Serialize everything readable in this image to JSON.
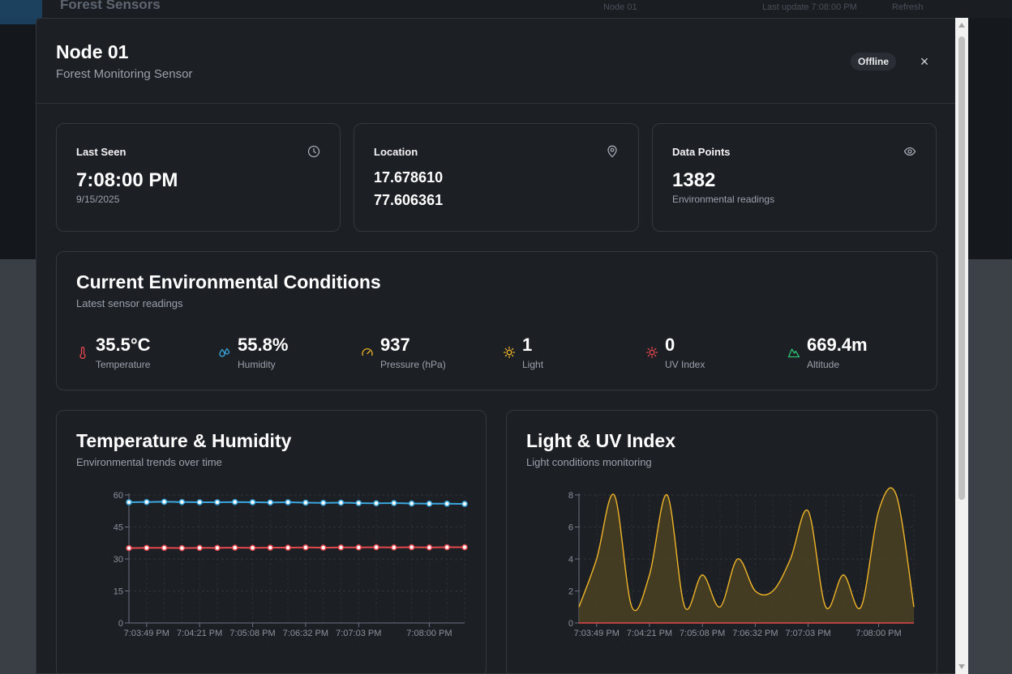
{
  "background": {
    "title": "Forest Sensors",
    "nav": [
      "Node 01",
      "Last update 7:08:00 PM",
      "Refresh"
    ]
  },
  "modal": {
    "title": "Node 01",
    "subtitle": "Forest Monitoring Sensor",
    "status_badge": "Offline",
    "close_label": "×"
  },
  "summary": {
    "last_seen": {
      "label": "Last Seen",
      "time": "7:08:00 PM",
      "date": "9/15/2025",
      "icon": "clock-icon"
    },
    "location": {
      "label": "Location",
      "lat": "17.678610",
      "lon": "77.606361",
      "icon": "map-pin-icon"
    },
    "data_points": {
      "label": "Data Points",
      "value": "1382",
      "caption": "Environmental readings",
      "icon": "eye-icon"
    }
  },
  "conditions": {
    "title": "Current Environmental Conditions",
    "subtitle": "Latest sensor readings",
    "metrics": [
      {
        "value": "35.5°C",
        "label": "Temperature",
        "icon": "thermometer-icon",
        "color": "#e5484d"
      },
      {
        "value": "55.8%",
        "label": "Humidity",
        "icon": "droplets-icon",
        "color": "#3ba7e0"
      },
      {
        "value": "937",
        "label": "Pressure (hPa)",
        "icon": "gauge-icon",
        "color": "#f0b429"
      },
      {
        "value": "1",
        "label": "Light",
        "icon": "sun-icon",
        "color": "#f0b429"
      },
      {
        "value": "0",
        "label": "UV Index",
        "icon": "uv-sun-icon",
        "color": "#e5484d"
      },
      {
        "value": "669.4m",
        "label": "Altitude",
        "icon": "mountain-icon",
        "color": "#2fbf71"
      }
    ]
  },
  "chart_data": [
    {
      "type": "line",
      "title": "Temperature & Humidity",
      "subtitle": "Environmental trends over time",
      "x_ticks": [
        "7:03:49 PM",
        "7:04:21 PM",
        "7:05:08 PM",
        "7:06:32 PM",
        "7:07:03 PM",
        "7:08:00 PM"
      ],
      "ylim": [
        0,
        60
      ],
      "y_ticks": [
        0,
        15,
        30,
        45,
        60
      ],
      "grid": true,
      "series": [
        {
          "values": [
            56.6,
            56.7,
            56.8,
            56.7,
            56.6,
            56.6,
            56.7,
            56.6,
            56.5,
            56.6,
            56.4,
            56.3,
            56.4,
            56.2,
            56.1,
            56.2,
            56.0,
            55.9,
            55.9,
            55.8
          ],
          "color": "#3ba7e0"
        },
        {
          "values": [
            35.1,
            35.2,
            35.2,
            35.1,
            35.2,
            35.2,
            35.3,
            35.2,
            35.3,
            35.3,
            35.4,
            35.3,
            35.4,
            35.4,
            35.5,
            35.4,
            35.5,
            35.4,
            35.5,
            35.5
          ],
          "color": "#e5484d"
        }
      ]
    },
    {
      "type": "area",
      "title": "Light & UV Index",
      "subtitle": "Light conditions monitoring",
      "x_ticks": [
        "7:03:49 PM",
        "7:04:21 PM",
        "7:05:08 PM",
        "7:06:32 PM",
        "7:07:03 PM",
        "7:08:00 PM"
      ],
      "ylim": [
        0,
        8
      ],
      "y_ticks": [
        0,
        2,
        4,
        6,
        8
      ],
      "grid": true,
      "series": [
        {
          "values": [
            1,
            4,
            8,
            1,
            3,
            8,
            1,
            3,
            1,
            4,
            2,
            2,
            4,
            7,
            1,
            3,
            1,
            7,
            8,
            1
          ],
          "color": "#f0b429",
          "fill": "#4a4222"
        },
        {
          "values": [
            0,
            0,
            0,
            0,
            0,
            0,
            0,
            0,
            0,
            0,
            0,
            0,
            0,
            0,
            0,
            0,
            0,
            0,
            0,
            0
          ],
          "color": "#e5484d"
        }
      ]
    }
  ]
}
